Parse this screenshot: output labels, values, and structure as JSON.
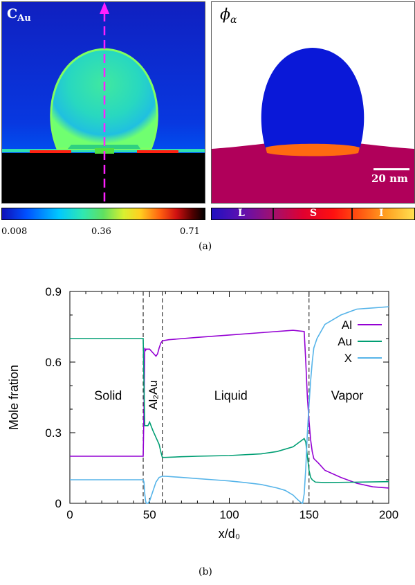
{
  "panel_a": {
    "left_label": "C",
    "left_label_sub": "Au",
    "right_label": "ϕ",
    "right_label_sub": "α",
    "scale_bar": "20 nm",
    "colorbar_left_ticks": [
      "0.008",
      "0.36",
      "0.71"
    ],
    "colorbar_right_labels": [
      "L",
      "S",
      "I"
    ],
    "caption": "(a)"
  },
  "panel_b": {
    "caption": "(b)"
  },
  "chart_data": {
    "type": "line",
    "xlabel": "x/d₀",
    "ylabel": "Mole fration",
    "xlim": [
      0,
      200
    ],
    "ylim": [
      0,
      0.9
    ],
    "xticks": [
      "0",
      "50",
      "100",
      "150",
      "200"
    ],
    "yticks": [
      "0",
      "0.3",
      "0.6",
      "0.9"
    ],
    "legend_position": "top-right",
    "region_labels": [
      "Solid",
      "Al₂Au",
      "Liquid",
      "Vapor"
    ],
    "interfaces_x": [
      46,
      58,
      150
    ],
    "series": [
      {
        "name": "Al",
        "color": "#9400d3",
        "x": [
          0,
          46,
          46.5,
          47,
          47.5,
          48,
          50,
          52,
          54,
          55,
          56,
          57,
          58,
          62,
          80,
          100,
          120,
          140,
          147,
          148,
          149,
          150,
          151,
          152,
          153,
          156,
          160,
          170,
          180,
          190,
          200
        ],
        "y": [
          0.2,
          0.2,
          0.4,
          0.66,
          0.65,
          0.655,
          0.655,
          0.64,
          0.625,
          0.635,
          0.66,
          0.68,
          0.69,
          0.695,
          0.705,
          0.715,
          0.725,
          0.735,
          0.73,
          0.6,
          0.45,
          0.35,
          0.27,
          0.22,
          0.19,
          0.17,
          0.14,
          0.11,
          0.085,
          0.07,
          0.065
        ]
      },
      {
        "name": "Au",
        "color": "#009e73",
        "x": [
          0,
          46,
          46.5,
          47,
          47.5,
          48,
          49,
          50,
          52,
          54,
          56,
          57,
          58,
          60,
          70,
          80,
          100,
          120,
          130,
          140,
          145,
          147,
          148,
          149,
          150,
          151,
          152,
          154,
          160,
          180,
          200
        ],
        "y": [
          0.7,
          0.7,
          0.5,
          0.33,
          0.33,
          0.33,
          0.33,
          0.345,
          0.31,
          0.28,
          0.25,
          0.22,
          0.195,
          0.195,
          0.198,
          0.2,
          0.203,
          0.21,
          0.22,
          0.24,
          0.265,
          0.275,
          0.26,
          0.2,
          0.14,
          0.11,
          0.1,
          0.09,
          0.088,
          0.09,
          0.092
        ]
      },
      {
        "name": "X",
        "color": "#56b4e9",
        "x": [
          0,
          46,
          46.5,
          47,
          47.5,
          48,
          49,
          50,
          52,
          54,
          56,
          58,
          60,
          70,
          80,
          90,
          100,
          110,
          120,
          130,
          135,
          140,
          143,
          145,
          146,
          147,
          148,
          149,
          150,
          151,
          152,
          153,
          155,
          160,
          170,
          180,
          190,
          200
        ],
        "y": [
          0.1,
          0.1,
          0.09,
          0.04,
          0.01,
          0.0,
          0.0,
          0.01,
          0.05,
          0.09,
          0.11,
          0.115,
          0.115,
          0.11,
          0.105,
          0.1,
          0.095,
          0.088,
          0.08,
          0.065,
          0.055,
          0.035,
          0.015,
          0.003,
          0.0,
          0.04,
          0.15,
          0.3,
          0.42,
          0.52,
          0.6,
          0.66,
          0.7,
          0.76,
          0.8,
          0.825,
          0.83,
          0.835
        ]
      }
    ]
  }
}
